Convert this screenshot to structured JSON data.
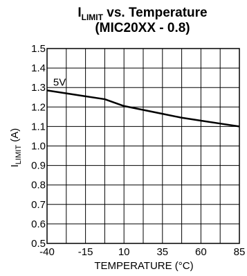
{
  "chart_data": {
    "type": "line",
    "title": {
      "lead": "I",
      "subscript": "LIMIT",
      "rest": " vs. Temperature",
      "line2": "(MIC20XX - 0.8)"
    },
    "xlabel": "TEMPERATURE (°C)",
    "ylabel": {
      "lead": "I",
      "subscript": "LIMIT",
      "rest": " (A)"
    },
    "xlim": [
      -40,
      85
    ],
    "ylim": [
      0.5,
      1.5
    ],
    "xticks": [
      -40,
      -15,
      10,
      35,
      60,
      85
    ],
    "yticks": [
      0.5,
      0.6,
      0.7,
      0.8,
      0.9,
      1.0,
      1.1,
      1.2,
      1.3,
      1.4,
      1.5
    ],
    "ytick_labels": [
      "0.5",
      "0.6",
      "0.7",
      "0.8",
      "0.9",
      "1.0",
      "1.1",
      "1.2",
      "1.3",
      "1.4",
      "1.5"
    ],
    "grid": true,
    "x_minor_divisions": 2,
    "series": [
      {
        "name": "5V",
        "color": "#000000",
        "x": [
          -40,
          -27.5,
          -15,
          -2.5,
          10,
          22.5,
          35,
          47.5,
          60,
          72.5,
          85
        ],
        "y": [
          1.285,
          1.27,
          1.255,
          1.24,
          1.205,
          1.185,
          1.165,
          1.145,
          1.13,
          1.115,
          1.1
        ]
      }
    ],
    "annotations": [
      {
        "text": "5V",
        "x": -36,
        "y": 1.31
      }
    ]
  }
}
